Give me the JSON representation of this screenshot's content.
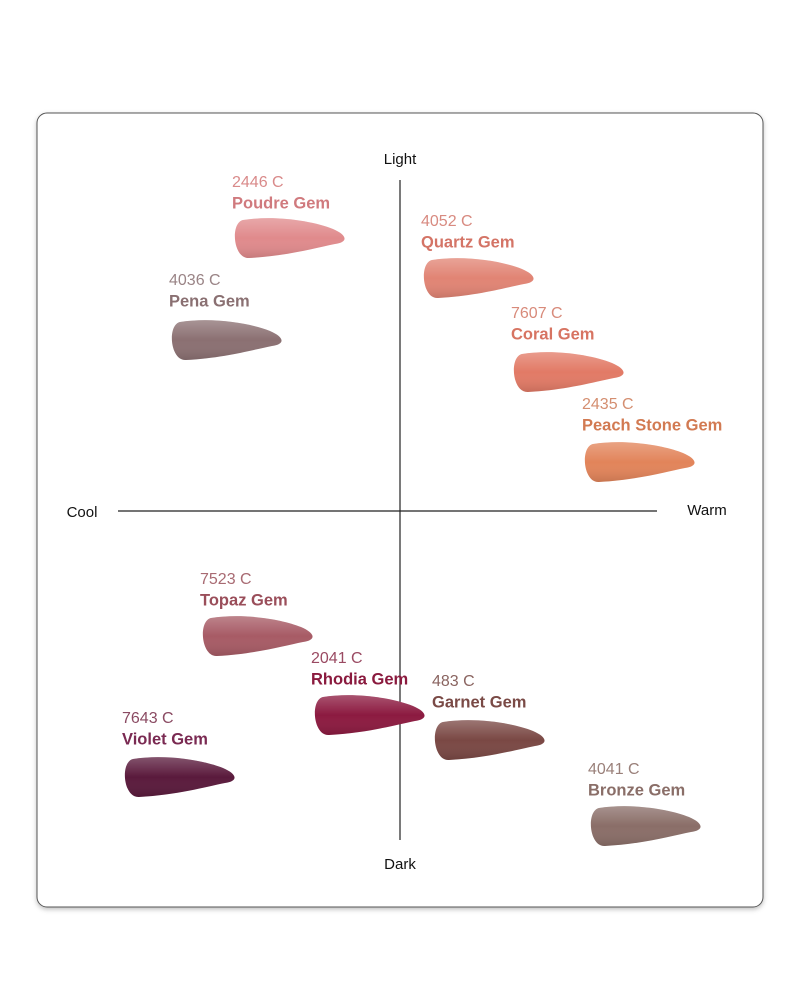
{
  "axes": {
    "top": "Light",
    "bottom": "Dark",
    "left": "Cool",
    "right": "Warm"
  },
  "shades": [
    {
      "code": "2446 C",
      "name": "Poudre Gem"
    },
    {
      "code": "4052 C",
      "name": "Quartz Gem"
    },
    {
      "code": "4036 C",
      "name": "Pena Gem"
    },
    {
      "code": "7607 C",
      "name": "Coral Gem"
    },
    {
      "code": "2435 C",
      "name": "Peach Stone Gem"
    },
    {
      "code": "7523 C",
      "name": "Topaz Gem"
    },
    {
      "code": "2041 C",
      "name": "Rhodia Gem"
    },
    {
      "code": "483 C",
      "name": "Garnet Gem"
    },
    {
      "code": "7643 C",
      "name": "Violet Gem"
    },
    {
      "code": "4041 C",
      "name": "Bronze Gem"
    }
  ]
}
